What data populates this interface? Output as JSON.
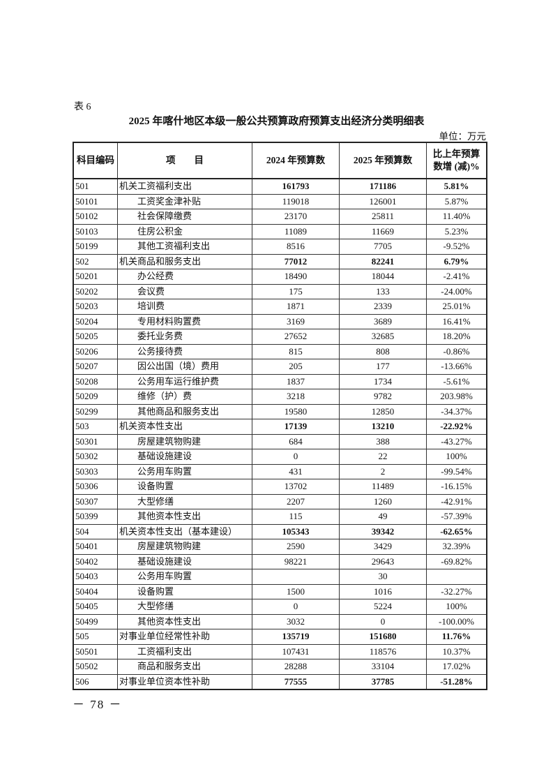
{
  "table_label": "表 6",
  "title": "2025 年喀什地区本级一般公共预算政府预算支出经济分类明细表",
  "unit": "单位：万元",
  "headers": [
    "科目编码",
    "项　　目",
    "2024 年预算数",
    "2025 年预算数",
    "比上年预算数增 (减)%"
  ],
  "rows": [
    [
      "501",
      "机关工资福利支出",
      "161793",
      "171186",
      "5.81%",
      0
    ],
    [
      "50101",
      "工资奖金津补贴",
      "119018",
      "126001",
      "5.87%",
      1
    ],
    [
      "50102",
      "社会保障缴费",
      "23170",
      "25811",
      "11.40%",
      1
    ],
    [
      "50103",
      "住房公积金",
      "11089",
      "11669",
      "5.23%",
      1
    ],
    [
      "50199",
      "其他工资福利支出",
      "8516",
      "7705",
      "-9.52%",
      1
    ],
    [
      "502",
      "机关商品和服务支出",
      "77012",
      "82241",
      "6.79%",
      0
    ],
    [
      "50201",
      "办公经费",
      "18490",
      "18044",
      "-2.41%",
      1
    ],
    [
      "50202",
      "会议费",
      "175",
      "133",
      "-24.00%",
      1
    ],
    [
      "50203",
      "培训费",
      "1871",
      "2339",
      "25.01%",
      1
    ],
    [
      "50204",
      "专用材料购置费",
      "3169",
      "3689",
      "16.41%",
      1
    ],
    [
      "50205",
      "委托业务费",
      "27652",
      "32685",
      "18.20%",
      1
    ],
    [
      "50206",
      "公务接待费",
      "815",
      "808",
      "-0.86%",
      1
    ],
    [
      "50207",
      "因公出国（境）费用",
      "205",
      "177",
      "-13.66%",
      1
    ],
    [
      "50208",
      "公务用车运行维护费",
      "1837",
      "1734",
      "-5.61%",
      1
    ],
    [
      "50209",
      "维修（护）费",
      "3218",
      "9782",
      "203.98%",
      1
    ],
    [
      "50299",
      "其他商品和服务支出",
      "19580",
      "12850",
      "-34.37%",
      1
    ],
    [
      "503",
      "机关资本性支出",
      "17139",
      "13210",
      "-22.92%",
      0
    ],
    [
      "50301",
      "房屋建筑物购建",
      "684",
      "388",
      "-43.27%",
      1
    ],
    [
      "50302",
      "基础设施建设",
      "0",
      "22",
      "100%",
      1
    ],
    [
      "50303",
      "公务用车购置",
      "431",
      "2",
      "-99.54%",
      1
    ],
    [
      "50306",
      "设备购置",
      "13702",
      "11489",
      "-16.15%",
      1
    ],
    [
      "50307",
      "大型修缮",
      "2207",
      "1260",
      "-42.91%",
      1
    ],
    [
      "50399",
      "其他资本性支出",
      "115",
      "49",
      "-57.39%",
      1
    ],
    [
      "504",
      "机关资本性支出（基本建设）",
      "105343",
      "39342",
      "-62.65%",
      0
    ],
    [
      "50401",
      "房屋建筑物购建",
      "2590",
      "3429",
      "32.39%",
      1
    ],
    [
      "50402",
      "基础设施建设",
      "98221",
      "29643",
      "-69.82%",
      1
    ],
    [
      "50403",
      "公务用车购置",
      "",
      "30",
      "",
      1
    ],
    [
      "50404",
      "设备购置",
      "1500",
      "1016",
      "-32.27%",
      1
    ],
    [
      "50405",
      "大型修缮",
      "0",
      "5224",
      "100%",
      1
    ],
    [
      "50499",
      "其他资本性支出",
      "3032",
      "0",
      "-100.00%",
      1
    ],
    [
      "505",
      "对事业单位经常性补助",
      "135719",
      "151680",
      "11.76%",
      0
    ],
    [
      "50501",
      "工资福利支出",
      "107431",
      "118576",
      "10.37%",
      1
    ],
    [
      "50502",
      "商品和服务支出",
      "28288",
      "33104",
      "17.02%",
      1
    ],
    [
      "506",
      "对事业单位资本性补助",
      "77555",
      "37785",
      "-51.28%",
      0
    ]
  ],
  "page_number": "－ 78 －"
}
